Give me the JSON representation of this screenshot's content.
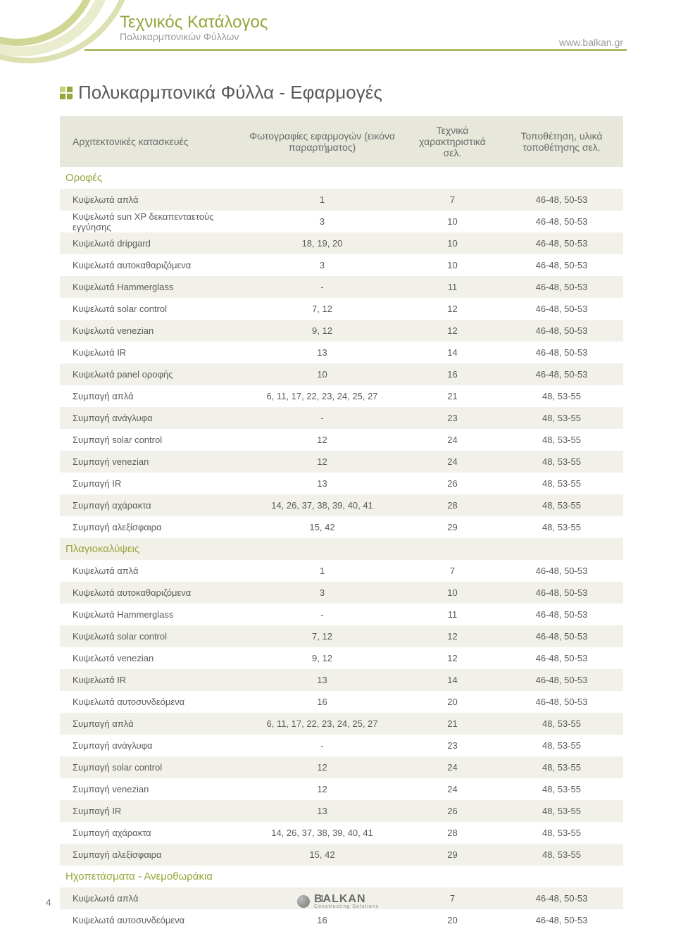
{
  "header": {
    "title": "Τεχνικός Κατάλογος",
    "subtitle": "Πολυκαρμπονικών Φύλλων",
    "url": "www.balkan.gr"
  },
  "page_title": "Πολυκαρμπονικά Φύλλα - Εφαρμογές",
  "table_headers": {
    "c1": "Αρχιτεκτονικές κατασκευές",
    "c2": "Φωτογραφίες εφαρμογών (εικόνα παραρτήματος)",
    "c3": "Τεχνικά χαρακτηριστικά σελ.",
    "c4": "Τοποθέτηση, υλικά τοποθέτησης σελ."
  },
  "sections": [
    {
      "title": "Οροφές",
      "rows": [
        {
          "c1": "Κυψελωτά απλά",
          "c2": "1",
          "c3": "7",
          "c4": "46-48, 50-53"
        },
        {
          "c1": "Κυψελωτά sun XP δεκαπενταετούς εγγύησης",
          "c2": "3",
          "c3": "10",
          "c4": "46-48, 50-53"
        },
        {
          "c1": "Κυψελωτά dripgard",
          "c2": "18, 19, 20",
          "c3": "10",
          "c4": "46-48, 50-53"
        },
        {
          "c1": "Κυψελωτά αυτοκαθαριζόμενα",
          "c2": "3",
          "c3": "10",
          "c4": "46-48, 50-53"
        },
        {
          "c1": "Κυψελωτά Hammerglass",
          "c2": "-",
          "c3": "11",
          "c4": "46-48, 50-53"
        },
        {
          "c1": "Κυψελωτά solar control",
          "c2": "7, 12",
          "c3": "12",
          "c4": "46-48, 50-53"
        },
        {
          "c1": "Κυψελωτά venezian",
          "c2": "9, 12",
          "c3": "12",
          "c4": "46-48, 50-53"
        },
        {
          "c1": "Κυψελωτά IR",
          "c2": "13",
          "c3": "14",
          "c4": "46-48, 50-53"
        },
        {
          "c1": "Κυψελωτά panel οροφής",
          "c2": "10",
          "c3": "16",
          "c4": "46-48, 50-53"
        },
        {
          "c1": "Συμπαγή απλά",
          "c2": "6, 11, 17, 22, 23, 24, 25, 27",
          "c3": "21",
          "c4": "48, 53-55"
        },
        {
          "c1": "Συμπαγή ανάγλυφα",
          "c2": "-",
          "c3": "23",
          "c4": "48, 53-55"
        },
        {
          "c1": "Συμπαγή solar control",
          "c2": "12",
          "c3": "24",
          "c4": "48, 53-55"
        },
        {
          "c1": "Συμπαγή venezian",
          "c2": "12",
          "c3": "24",
          "c4": "48, 53-55"
        },
        {
          "c1": "Συμπαγή IR",
          "c2": "13",
          "c3": "26",
          "c4": "48, 53-55"
        },
        {
          "c1": "Συμπαγή αχάρακτα",
          "c2": "14, 26, 37, 38, 39, 40, 41",
          "c3": "28",
          "c4": "48, 53-55"
        },
        {
          "c1": "Συμπαγή αλεξίσφαιρα",
          "c2": "15, 42",
          "c3": "29",
          "c4": "48, 53-55"
        }
      ]
    },
    {
      "title": "Πλαγιοκαλύψεις",
      "rows": [
        {
          "c1": "Κυψελωτά απλά",
          "c2": "1",
          "c3": "7",
          "c4": "46-48, 50-53"
        },
        {
          "c1": "Κυψελωτά αυτοκαθαριζόμενα",
          "c2": "3",
          "c3": "10",
          "c4": "46-48, 50-53"
        },
        {
          "c1": "Κυψελωτά Hammerglass",
          "c2": "-",
          "c3": "11",
          "c4": "46-48, 50-53"
        },
        {
          "c1": "Κυψελωτά solar control",
          "c2": "7, 12",
          "c3": "12",
          "c4": "46-48, 50-53"
        },
        {
          "c1": "Κυψελωτά venezian",
          "c2": "9, 12",
          "c3": "12",
          "c4": "46-48, 50-53"
        },
        {
          "c1": "Κυψελωτά IR",
          "c2": "13",
          "c3": "14",
          "c4": "46-48, 50-53"
        },
        {
          "c1": "Κυψελωτά αυτοσυνδεόμενα",
          "c2": "16",
          "c3": "20",
          "c4": "46-48, 50-53"
        },
        {
          "c1": "Συμπαγή απλά",
          "c2": "6, 11, 17, 22, 23, 24, 25, 27",
          "c3": "21",
          "c4": "48, 53-55"
        },
        {
          "c1": "Συμπαγή ανάγλυφα",
          "c2": "-",
          "c3": "23",
          "c4": "48, 53-55"
        },
        {
          "c1": "Συμπαγή solar control",
          "c2": "12",
          "c3": "24",
          "c4": "48, 53-55"
        },
        {
          "c1": "Συμπαγή venezian",
          "c2": "12",
          "c3": "24",
          "c4": "48, 53-55"
        },
        {
          "c1": "Συμπαγή IR",
          "c2": "13",
          "c3": "26",
          "c4": "48, 53-55"
        },
        {
          "c1": "Συμπαγή αχάρακτα",
          "c2": "14, 26, 37, 38, 39, 40, 41",
          "c3": "28",
          "c4": "48, 53-55"
        },
        {
          "c1": "Συμπαγή αλεξίσφαιρα",
          "c2": "15, 42",
          "c3": "29",
          "c4": "48, 53-55"
        }
      ]
    },
    {
      "title": "Ηχοπετάσματα - Ανεμοθωράκια",
      "rows": [
        {
          "c1": "Κυψελωτά απλά",
          "c2": "1",
          "c3": "7",
          "c4": "46-48, 50-53"
        },
        {
          "c1": "Κυψελωτά αυτοσυνδεόμενα",
          "c2": "16",
          "c3": "20",
          "c4": "46-48, 50-53"
        }
      ]
    }
  ],
  "footer": {
    "page_num": "4",
    "logo_text": "BALKAN",
    "logo_sub": "Constructing Solutions"
  },
  "colors": {
    "accent": "#97a63a",
    "header_bg": "#e7e7dc",
    "alt_row": "#f2f1e9",
    "text": "#5a5a5a"
  }
}
